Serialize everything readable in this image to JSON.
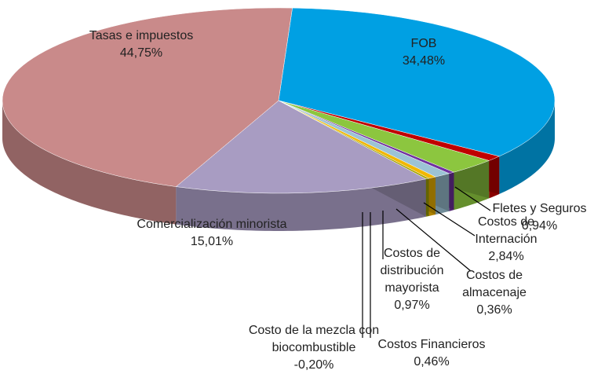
{
  "chart_data": {
    "type": "pie",
    "categories": [
      "FOB",
      "Fletes y Seguros",
      "Costos de Internación",
      "Costos de almacenaje",
      "Costos de distribución mayorista",
      "Costos Financieros",
      "Costo de la mezcla con biocombustible",
      "Comercialización minorista",
      "Tasas e impuestos"
    ],
    "values": [
      34.48,
      0.94,
      2.84,
      0.36,
      0.97,
      0.46,
      -0.2,
      15.01,
      44.75
    ],
    "value_labels": [
      "34,48%",
      "0,94%",
      "2,84%",
      "0,36%",
      "0,97%",
      "0,46%",
      "-0,20%",
      "15,01%",
      "44,75%"
    ],
    "colors": [
      "#00a0e3",
      "#c00000",
      "#8cc63f",
      "#7030a0",
      "#9cc3d5",
      "#f2b700",
      "#a6a600",
      "#a89cc2",
      "#c98a8a"
    ]
  }
}
